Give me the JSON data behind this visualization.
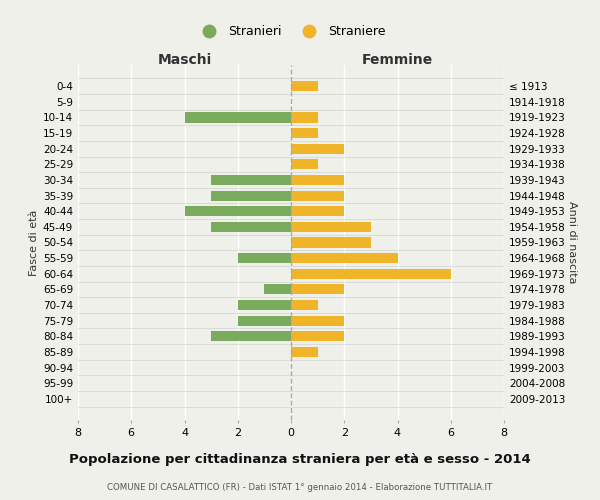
{
  "age_groups": [
    "0-4",
    "5-9",
    "10-14",
    "15-19",
    "20-24",
    "25-29",
    "30-34",
    "35-39",
    "40-44",
    "45-49",
    "50-54",
    "55-59",
    "60-64",
    "65-69",
    "70-74",
    "75-79",
    "80-84",
    "85-89",
    "90-94",
    "95-99",
    "100+"
  ],
  "birth_years": [
    "2009-2013",
    "2004-2008",
    "1999-2003",
    "1994-1998",
    "1989-1993",
    "1984-1988",
    "1979-1983",
    "1974-1978",
    "1969-1973",
    "1964-1968",
    "1959-1963",
    "1954-1958",
    "1949-1953",
    "1944-1948",
    "1939-1943",
    "1934-1938",
    "1929-1933",
    "1924-1928",
    "1919-1923",
    "1914-1918",
    "≤ 1913"
  ],
  "maschi": [
    0,
    0,
    4,
    0,
    0,
    0,
    3,
    3,
    4,
    3,
    0,
    2,
    0,
    1,
    2,
    2,
    3,
    0,
    0,
    0,
    0
  ],
  "femmine": [
    1,
    0,
    1,
    1,
    2,
    1,
    2,
    2,
    2,
    3,
    3,
    4,
    6,
    2,
    1,
    2,
    2,
    1,
    0,
    0,
    0
  ],
  "color_maschi": "#7aab5c",
  "color_femmine": "#f0b429",
  "title": "Popolazione per cittadinanza straniera per età e sesso - 2014",
  "subtitle": "COMUNE DI CASALATTICO (FR) - Dati ISTAT 1° gennaio 2014 - Elaborazione TUTTITALIA.IT",
  "xlabel_left": "Maschi",
  "xlabel_right": "Femmine",
  "ylabel_left": "Fasce di età",
  "ylabel_right": "Anni di nascita",
  "legend_maschi": "Stranieri",
  "legend_femmine": "Straniere",
  "xmax": 8,
  "background_color": "#f0f0eb"
}
